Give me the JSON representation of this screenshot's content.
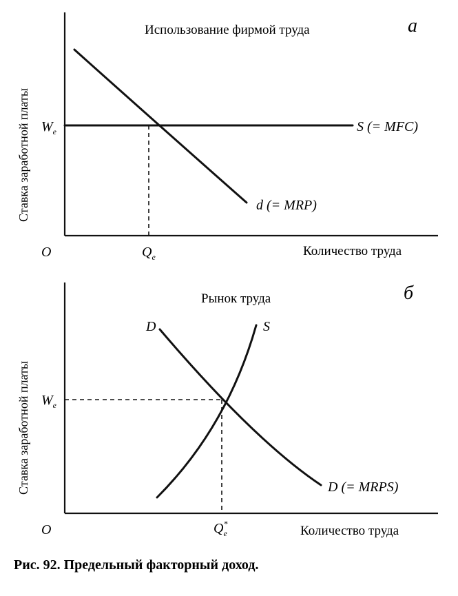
{
  "panel_a": {
    "letter": "a",
    "title": "Использование фирмой труда",
    "y_axis_label": "Ставка заработной платы",
    "x_axis_label": "Количество труда",
    "origin_label": "O",
    "we_label": "W",
    "we_sub": "e",
    "qe_label": "Q",
    "qe_sub": "e",
    "supply_label": "S (= MFC)",
    "demand_label": "d (= MRP)"
  },
  "panel_b": {
    "letter": "б",
    "title": "Рынок труда",
    "y_axis_label": "Ставка заработной платы",
    "x_axis_label": "Количество труда",
    "origin_label": "O",
    "we_label": "W",
    "we_sub": "e",
    "qe_label": "Q",
    "qe_sub": "e",
    "qe_sup": "*",
    "demand_top_label": "D",
    "supply_top_label": "S",
    "demand_bottom_label": "D (= MRPS)"
  },
  "caption": "Рис. 92. Предельный факторный доход."
}
